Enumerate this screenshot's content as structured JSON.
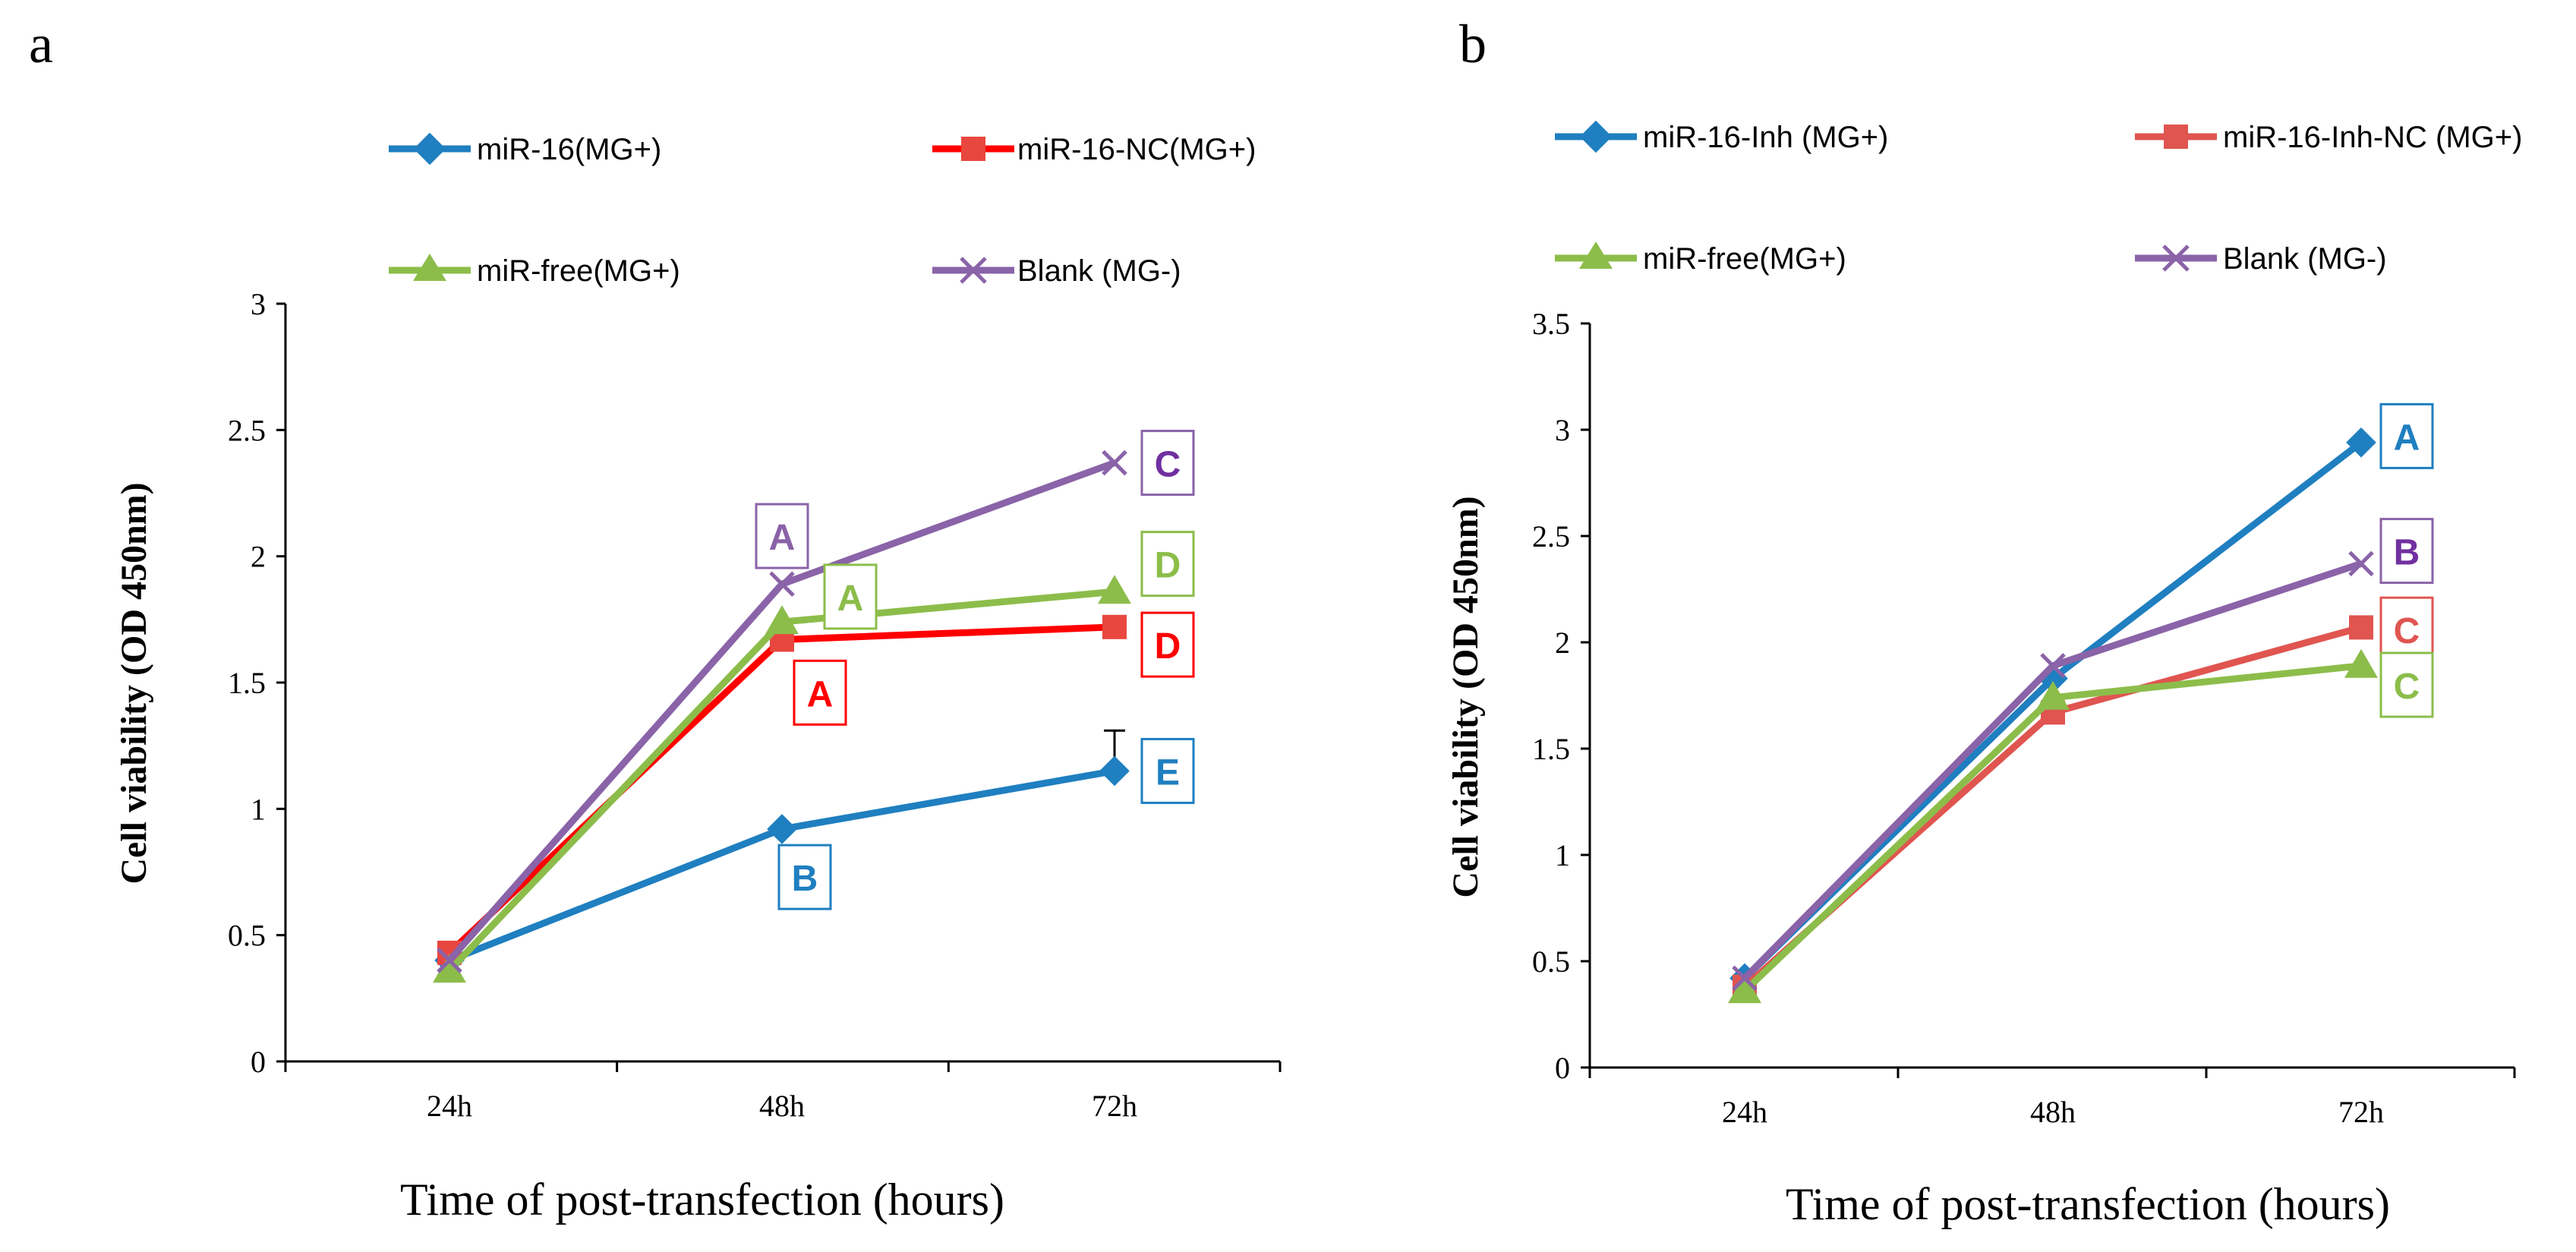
{
  "chart_data": [
    {
      "type": "line",
      "panel_label": "a",
      "title": "",
      "xlabel": "Time  of  post-transfection (hours)",
      "ylabel": "Cell viability (OD 450nm)",
      "categories": [
        "24h",
        "48h",
        "72h"
      ],
      "ylim": [
        0,
        3
      ],
      "yticks": [
        0,
        0.5,
        1,
        1.5,
        2,
        2.5,
        3
      ],
      "ytick_labels": [
        "0",
        "0.5",
        "1",
        "1.5",
        "2",
        "2.5",
        "3"
      ],
      "grid": false,
      "legend_position": "top",
      "series": [
        {
          "name": "miR-16(MG+)",
          "color": "#1f7fc0",
          "marker": "diamond",
          "values": [
            0.4,
            0.92,
            1.15
          ],
          "error_bar_72h": 0.16
        },
        {
          "name": "miR-16-NC(MG+)",
          "color": "#e8473f",
          "line_color": "#ff0000",
          "marker": "square",
          "values": [
            0.43,
            1.67,
            1.72
          ]
        },
        {
          "name": "miR-free(MG+)",
          "color": "#8cbd4a",
          "marker": "triangle",
          "values": [
            0.36,
            1.74,
            1.86
          ]
        },
        {
          "name": "Blank (MG-)",
          "color": "#8a63a8",
          "marker": "x",
          "values": [
            0.4,
            1.89,
            2.37
          ]
        }
      ],
      "annotations": [
        {
          "text": "A",
          "series": "Blank (MG-)",
          "category": "48h",
          "value": 2.08,
          "color": "#8a63a8",
          "box": "#8a63a8"
        },
        {
          "text": "A",
          "series": "miR-free(MG+)",
          "category": "48h",
          "value": 1.84,
          "color": "#8cbd4a",
          "box": "#8cbd4a"
        },
        {
          "text": "A",
          "series": "miR-16-NC(MG+)",
          "category": "48h",
          "value": 1.46,
          "color": "#ff0000",
          "box": "#ff0000"
        },
        {
          "text": "B",
          "series": "miR-16(MG+)",
          "category": "48h",
          "value": 0.73,
          "color": "#1f7fc0",
          "box": "#1f7fc0"
        },
        {
          "text": "C",
          "series": "Blank (MG-)",
          "category": "72h",
          "value": 2.37,
          "color": "#7030a0",
          "box": "#8a63a8"
        },
        {
          "text": "D",
          "series": "miR-free(MG+)",
          "category": "72h",
          "value": 1.97,
          "color": "#8cbd4a",
          "box": "#8cbd4a"
        },
        {
          "text": "D",
          "series": "miR-16-NC(MG+)",
          "category": "72h",
          "value": 1.65,
          "color": "#ff0000",
          "box": "#ff0000"
        },
        {
          "text": "E",
          "series": "miR-16(MG+)",
          "category": "72h",
          "value": 1.15,
          "color": "#1f7fc0",
          "box": "#1f7fc0"
        }
      ]
    },
    {
      "type": "line",
      "panel_label": "b",
      "title": "",
      "xlabel": "Time  of  post-transfection (hours)",
      "ylabel": "Cell viability (OD 450nm)",
      "categories": [
        "24h",
        "48h",
        "72h"
      ],
      "ylim": [
        0,
        3.5
      ],
      "yticks": [
        0,
        0.5,
        1,
        1.5,
        2,
        2.5,
        3,
        3.5
      ],
      "ytick_labels": [
        "0",
        "0.5",
        "1",
        "1.5",
        "2",
        "2.5",
        "3",
        "3.5"
      ],
      "grid": false,
      "legend_position": "top",
      "series": [
        {
          "name": "miR-16-Inh (MG+)",
          "color": "#1f7fc0",
          "marker": "diamond",
          "values": [
            0.42,
            1.83,
            2.94
          ]
        },
        {
          "name": "miR-16-Inh-NC (MG+)",
          "color": "#e05550",
          "marker": "square",
          "values": [
            0.38,
            1.67,
            2.07
          ]
        },
        {
          "name": "miR-free(MG+)",
          "color": "#8cbd4a",
          "marker": "triangle",
          "values": [
            0.36,
            1.74,
            1.89
          ]
        },
        {
          "name": "Blank (MG-)",
          "color": "#8a63a8",
          "marker": "x",
          "values": [
            0.42,
            1.89,
            2.37
          ]
        }
      ],
      "annotations": [
        {
          "text": "A",
          "series": "miR-16-Inh (MG+)",
          "category": "72h",
          "value": 2.97,
          "color": "#1f7fc0",
          "box": "#1f7fc0"
        },
        {
          "text": "B",
          "series": "Blank (MG-)",
          "category": "72h",
          "value": 2.43,
          "color": "#7030a0",
          "box": "#8a63a8"
        },
        {
          "text": "C",
          "series": "miR-16-Inh-NC (MG+)",
          "category": "72h",
          "value": 2.06,
          "color": "#e05550",
          "box": "#e05550"
        },
        {
          "text": "C",
          "series": "miR-free(MG+)",
          "category": "72h",
          "value": 1.8,
          "color": "#8cbd4a",
          "box": "#8cbd4a"
        }
      ]
    }
  ]
}
